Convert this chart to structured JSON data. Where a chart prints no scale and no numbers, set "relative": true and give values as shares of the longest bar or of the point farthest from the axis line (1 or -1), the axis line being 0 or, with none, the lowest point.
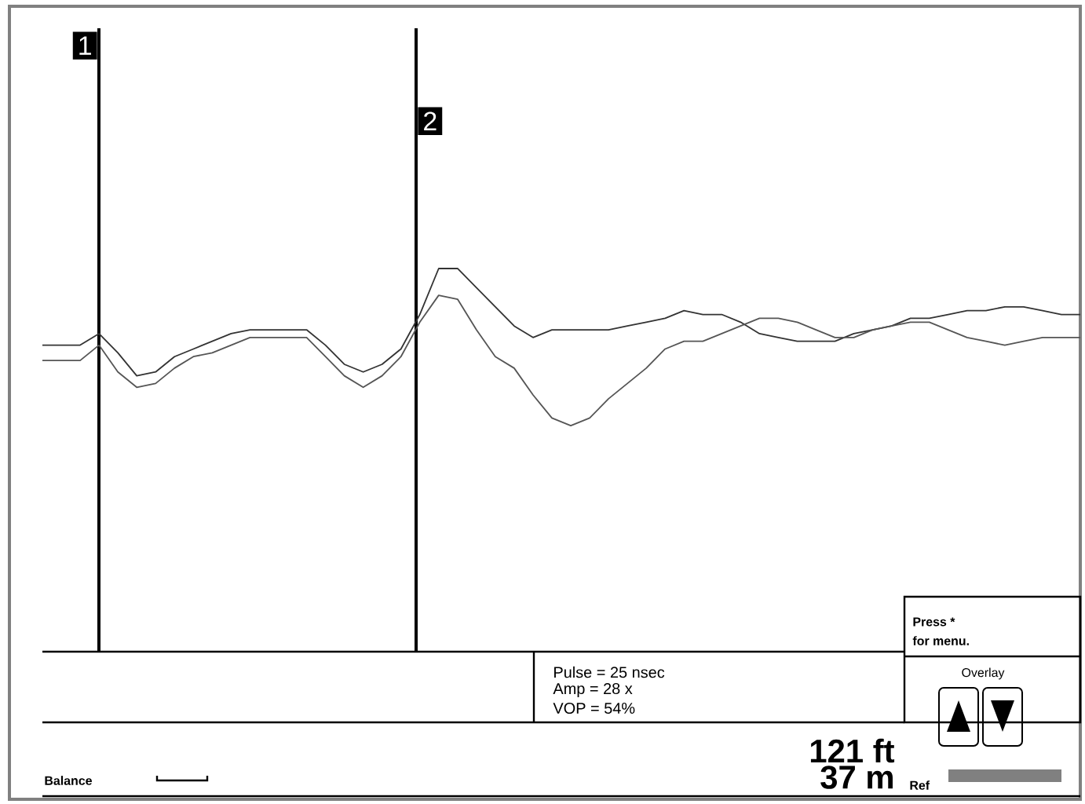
{
  "chart_data": {
    "type": "line",
    "relative": true,
    "categories": [
      null,
      null,
      null,
      null,
      null,
      null,
      null,
      null,
      null,
      null,
      null,
      null,
      null,
      null,
      null,
      null,
      null,
      null,
      null,
      null,
      null,
      null,
      null,
      null,
      null,
      null,
      null,
      null,
      null,
      null,
      null,
      null,
      null,
      null,
      null,
      null,
      null,
      null,
      null,
      null,
      null,
      null,
      null,
      null,
      null,
      null,
      null,
      null,
      null,
      null,
      null,
      null,
      null,
      null,
      null,
      null
    ],
    "series": [
      {
        "color": "#333333",
        "values": [
          0.8,
          0.8,
          0.8,
          0.83,
          0.78,
          0.72,
          0.73,
          0.77,
          0.79,
          0.81,
          0.83,
          0.84,
          0.84,
          0.84,
          0.84,
          0.8,
          0.75,
          0.73,
          0.75,
          0.79,
          0.88,
          1.0,
          1.0,
          0.95,
          0.9,
          0.85,
          0.82,
          0.84,
          0.84,
          0.84,
          0.84,
          0.85,
          0.86,
          0.87,
          0.89,
          0.88,
          0.88,
          0.86,
          0.83,
          0.82,
          0.81,
          0.81,
          0.81,
          0.83,
          0.84,
          0.85,
          0.87,
          0.87,
          0.88,
          0.89,
          0.89,
          0.9,
          0.9,
          0.89,
          0.88,
          0.88
        ]
      },
      {
        "color": "#555555",
        "values": [
          0.76,
          0.76,
          0.76,
          0.8,
          0.73,
          0.69,
          0.7,
          0.74,
          0.77,
          0.78,
          0.8,
          0.82,
          0.82,
          0.82,
          0.82,
          0.77,
          0.72,
          0.69,
          0.72,
          0.77,
          0.86,
          0.93,
          0.92,
          0.84,
          0.77,
          0.74,
          0.67,
          0.61,
          0.59,
          0.61,
          0.66,
          0.7,
          0.74,
          0.79,
          0.81,
          0.81,
          0.83,
          0.85,
          0.87,
          0.87,
          0.86,
          0.84,
          0.82,
          0.82,
          0.84,
          0.85,
          0.86,
          0.86,
          0.84,
          0.82,
          0.81,
          0.8,
          0.81,
          0.82,
          0.82,
          0.82
        ]
      }
    ],
    "annotations": [
      "1",
      "2",
      "Pulse = 25 nsec",
      "Amp = 28 x",
      "VOP = 54%",
      "121 ft",
      "37 m",
      "Balance",
      "Press *",
      "for menu.",
      "Overlay",
      "Ref"
    ]
  }
}
